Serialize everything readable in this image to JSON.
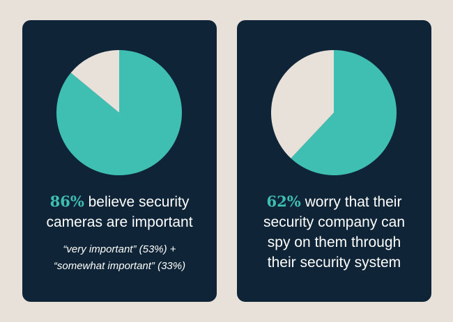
{
  "colors": {
    "background": "#e8e1da",
    "card": "#0f2537",
    "accent": "#3ebfb2",
    "remainder": "#e8e1da",
    "text": "#ffffff"
  },
  "chart_data": [
    {
      "type": "pie",
      "labels": [
        "believe security cameras are important",
        "other"
      ],
      "values": [
        86,
        14
      ],
      "colors": [
        "#3ebfb2",
        "#e8e1da"
      ],
      "stat": {
        "percent": "86%",
        "line1_rest": " believe security",
        "line2": "cameras are important"
      },
      "note": {
        "line1": "“very important” (53%) +",
        "line2": "“somewhat important” (33%)"
      }
    },
    {
      "type": "pie",
      "labels": [
        "worry that their security company can spy on them through their security system",
        "other"
      ],
      "values": [
        62,
        38
      ],
      "colors": [
        "#3ebfb2",
        "#e8e1da"
      ],
      "stat": {
        "percent": "62%",
        "line1_rest": " worry that their",
        "line2": "security company can",
        "line3": "spy on them through",
        "line4": "their security system"
      }
    }
  ]
}
